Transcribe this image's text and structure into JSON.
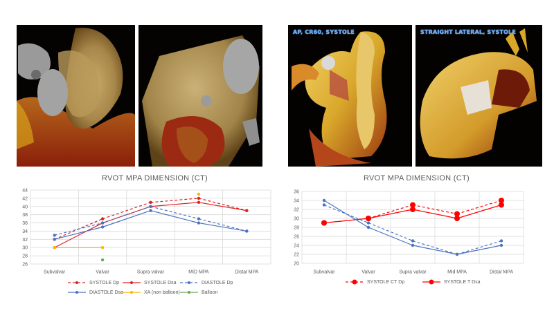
{
  "images": [
    {
      "name": "ct-render-1",
      "label": ""
    },
    {
      "name": "ct-render-2",
      "label": ""
    },
    {
      "name": "ct-render-3",
      "label": "AP, CR60, SYSTOLE"
    },
    {
      "name": "ct-render-4",
      "label": "STRAIGHT LATERAL, SYSTOLE"
    }
  ],
  "chart_data": [
    {
      "type": "line",
      "title": "RVOT MPA DIMENSION (CT)",
      "categories": [
        "Subvalvar",
        "Valvar",
        "Supra valvar",
        "MID MPA",
        "Distal MPA"
      ],
      "ylim": [
        26,
        44
      ],
      "yticks": [
        "26",
        "28",
        "30",
        "32",
        "34",
        "36",
        "38",
        "40",
        "42",
        "44"
      ],
      "grid": true,
      "legend_position": "bottom",
      "series": [
        {
          "name": "SYSTOLE Dp",
          "color": "#e02020",
          "dash": true,
          "values": [
            32,
            37,
            41,
            42,
            39
          ]
        },
        {
          "name": "SYSTOLE Dsa",
          "color": "#e02020",
          "dash": false,
          "values": [
            30,
            36,
            40,
            41,
            39
          ]
        },
        {
          "name": "DIASTOLE Dp",
          "color": "#4a72c0",
          "dash": true,
          "values": [
            33,
            36,
            40,
            37,
            34
          ]
        },
        {
          "name": "DIASTOLE Dsa",
          "color": "#4a72c0",
          "dash": false,
          "values": [
            32,
            35,
            39,
            36,
            34
          ]
        },
        {
          "name": "XA (non balloon)",
          "color": "#f5b800",
          "dash": false,
          "values": [
            30,
            30,
            null,
            43,
            null
          ]
        },
        {
          "name": "Balloon",
          "color": "#6aa84f",
          "dash": false,
          "values": [
            null,
            27,
            null,
            null,
            null
          ]
        }
      ]
    },
    {
      "type": "line",
      "title": "RVOT MPA DIMENSION (CT)",
      "categories": [
        "Subvalvar",
        "Valvar",
        "Supra valvar",
        "Mid MPA",
        "Distal MPA"
      ],
      "ylim": [
        20,
        36
      ],
      "yticks": [
        "20",
        "22",
        "24",
        "26",
        "28",
        "30",
        "32",
        "34",
        "36"
      ],
      "grid": true,
      "legend_position": "bottom",
      "series": [
        {
          "name": "SYSTOLE CT Dp",
          "color": "#ff0000",
          "dash": true,
          "big_marker": true,
          "values": [
            29,
            30,
            33,
            31,
            34
          ]
        },
        {
          "name": "SYSTOLE T Dsa",
          "color": "#ff0000",
          "dash": false,
          "big_marker": true,
          "values": [
            29,
            30,
            32,
            30,
            33
          ]
        },
        {
          "name": "",
          "color": "#4a72c0",
          "dash": true,
          "legend": false,
          "values": [
            33,
            29,
            25,
            22,
            25
          ]
        },
        {
          "name": "",
          "color": "#4a72c0",
          "dash": false,
          "legend": false,
          "values": [
            34,
            28,
            24,
            22,
            24
          ]
        }
      ]
    }
  ]
}
